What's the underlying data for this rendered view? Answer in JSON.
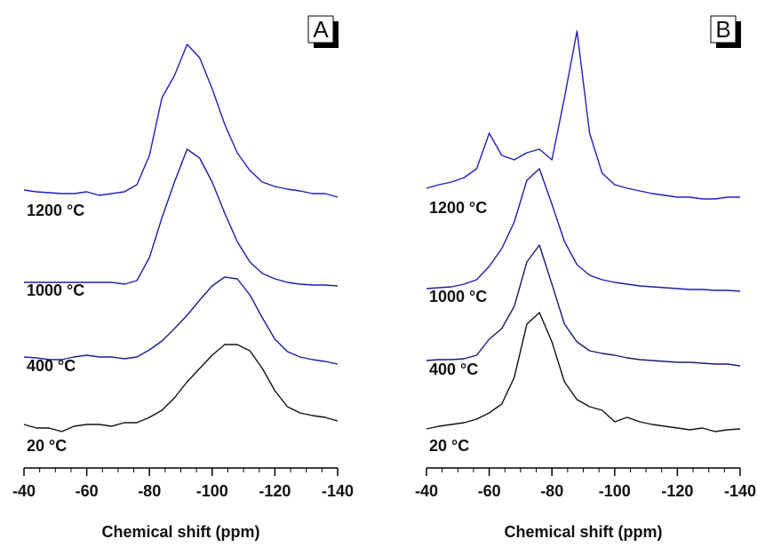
{
  "chart_data": [
    {
      "type": "line",
      "title": "A",
      "xlabel": "Chemical shift (ppm)",
      "x": [
        -40,
        -44,
        -48,
        -52,
        -56,
        -60,
        -64,
        -68,
        -72,
        -76,
        -80,
        -84,
        -88,
        -92,
        -96,
        -100,
        -104,
        -108,
        -112,
        -116,
        -120,
        -124,
        -128,
        -132,
        -136,
        -140
      ],
      "xlim": [
        -40,
        -140
      ],
      "xticks": [
        -40,
        -60,
        -80,
        -100,
        -120,
        -140
      ],
      "xminorticks": [
        -45,
        -50,
        -55,
        -65,
        -70,
        -75,
        -85,
        -90,
        -95,
        -105,
        -110,
        -115,
        -125,
        -130,
        -135
      ],
      "ylim": [
        0,
        500
      ],
      "series": [
        {
          "name": "20 °C",
          "color": "#111111",
          "values": [
            49,
            45,
            45,
            41,
            47,
            49,
            49,
            47,
            51,
            51,
            57,
            65,
            79,
            97,
            112,
            127,
            139,
            139,
            132,
            112,
            87,
            69,
            62,
            59,
            57,
            53
          ]
        },
        {
          "name": "400 °C",
          "color": "#1c1c9a",
          "values": [
            125,
            124,
            122,
            122,
            125,
            127,
            125,
            125,
            123,
            125,
            133,
            143,
            157,
            172,
            189,
            205,
            215,
            213,
            195,
            169,
            145,
            131,
            125,
            122,
            120,
            117
          ]
        },
        {
          "name": "1000 °C",
          "color": "#1c1caa",
          "values": [
            209,
            209,
            209,
            209,
            209,
            209,
            209,
            209,
            207,
            211,
            237,
            282,
            322,
            359,
            349,
            322,
            287,
            255,
            232,
            219,
            213,
            209,
            207,
            206,
            206,
            205
          ]
        },
        {
          "name": "1200 °C",
          "color": "#1f1fc0",
          "values": [
            313,
            311,
            310,
            309,
            309,
            311,
            307,
            309,
            311,
            319,
            352,
            417,
            442,
            477,
            462,
            427,
            387,
            355,
            335,
            322,
            317,
            314,
            312,
            309,
            309,
            305
          ]
        }
      ]
    },
    {
      "type": "line",
      "title": "B",
      "xlabel": "Chemical shift (ppm)",
      "x": [
        -40,
        -44,
        -48,
        -52,
        -56,
        -60,
        -64,
        -68,
        -72,
        -76,
        -80,
        -84,
        -88,
        -92,
        -96,
        -100,
        -104,
        -108,
        -112,
        -116,
        -120,
        -124,
        -128,
        -132,
        -136,
        -140
      ],
      "xlim": [
        -40,
        -140
      ],
      "xticks": [
        -40,
        -60,
        -80,
        -100,
        -120,
        -140
      ],
      "xminorticks": [
        -45,
        -50,
        -55,
        -65,
        -70,
        -75,
        -85,
        -90,
        -95,
        -105,
        -110,
        -115,
        -125,
        -130,
        -135
      ],
      "ylim": [
        0,
        500
      ],
      "series": [
        {
          "name": "20 °C",
          "color": "#111111",
          "values": [
            44,
            47,
            49,
            51,
            55,
            62,
            72,
            102,
            162,
            175,
            142,
            97,
            77,
            69,
            65,
            52,
            57,
            52,
            49,
            47,
            45,
            43,
            45,
            41,
            43,
            44
          ]
        },
        {
          "name": "400 °C",
          "color": "#1a1a70",
          "values": [
            121,
            122,
            122,
            123,
            127,
            145,
            157,
            182,
            232,
            251,
            207,
            162,
            142,
            132,
            129,
            127,
            124,
            122,
            121,
            120,
            119,
            119,
            118,
            117,
            117,
            115
          ]
        },
        {
          "name": "1000 °C",
          "color": "#1c1caa",
          "values": [
            202,
            203,
            204,
            207,
            212,
            227,
            247,
            277,
            324,
            337,
            297,
            255,
            229,
            217,
            212,
            209,
            207,
            205,
            204,
            203,
            202,
            201,
            201,
            200,
            200,
            199
          ]
        },
        {
          "name": "1200 °C",
          "color": "#1f1fc0",
          "values": [
            315,
            319,
            322,
            327,
            337,
            377,
            352,
            347,
            355,
            359,
            347,
            417,
            492,
            377,
            332,
            319,
            315,
            312,
            309,
            307,
            305,
            305,
            303,
            303,
            305,
            305
          ]
        }
      ]
    }
  ]
}
